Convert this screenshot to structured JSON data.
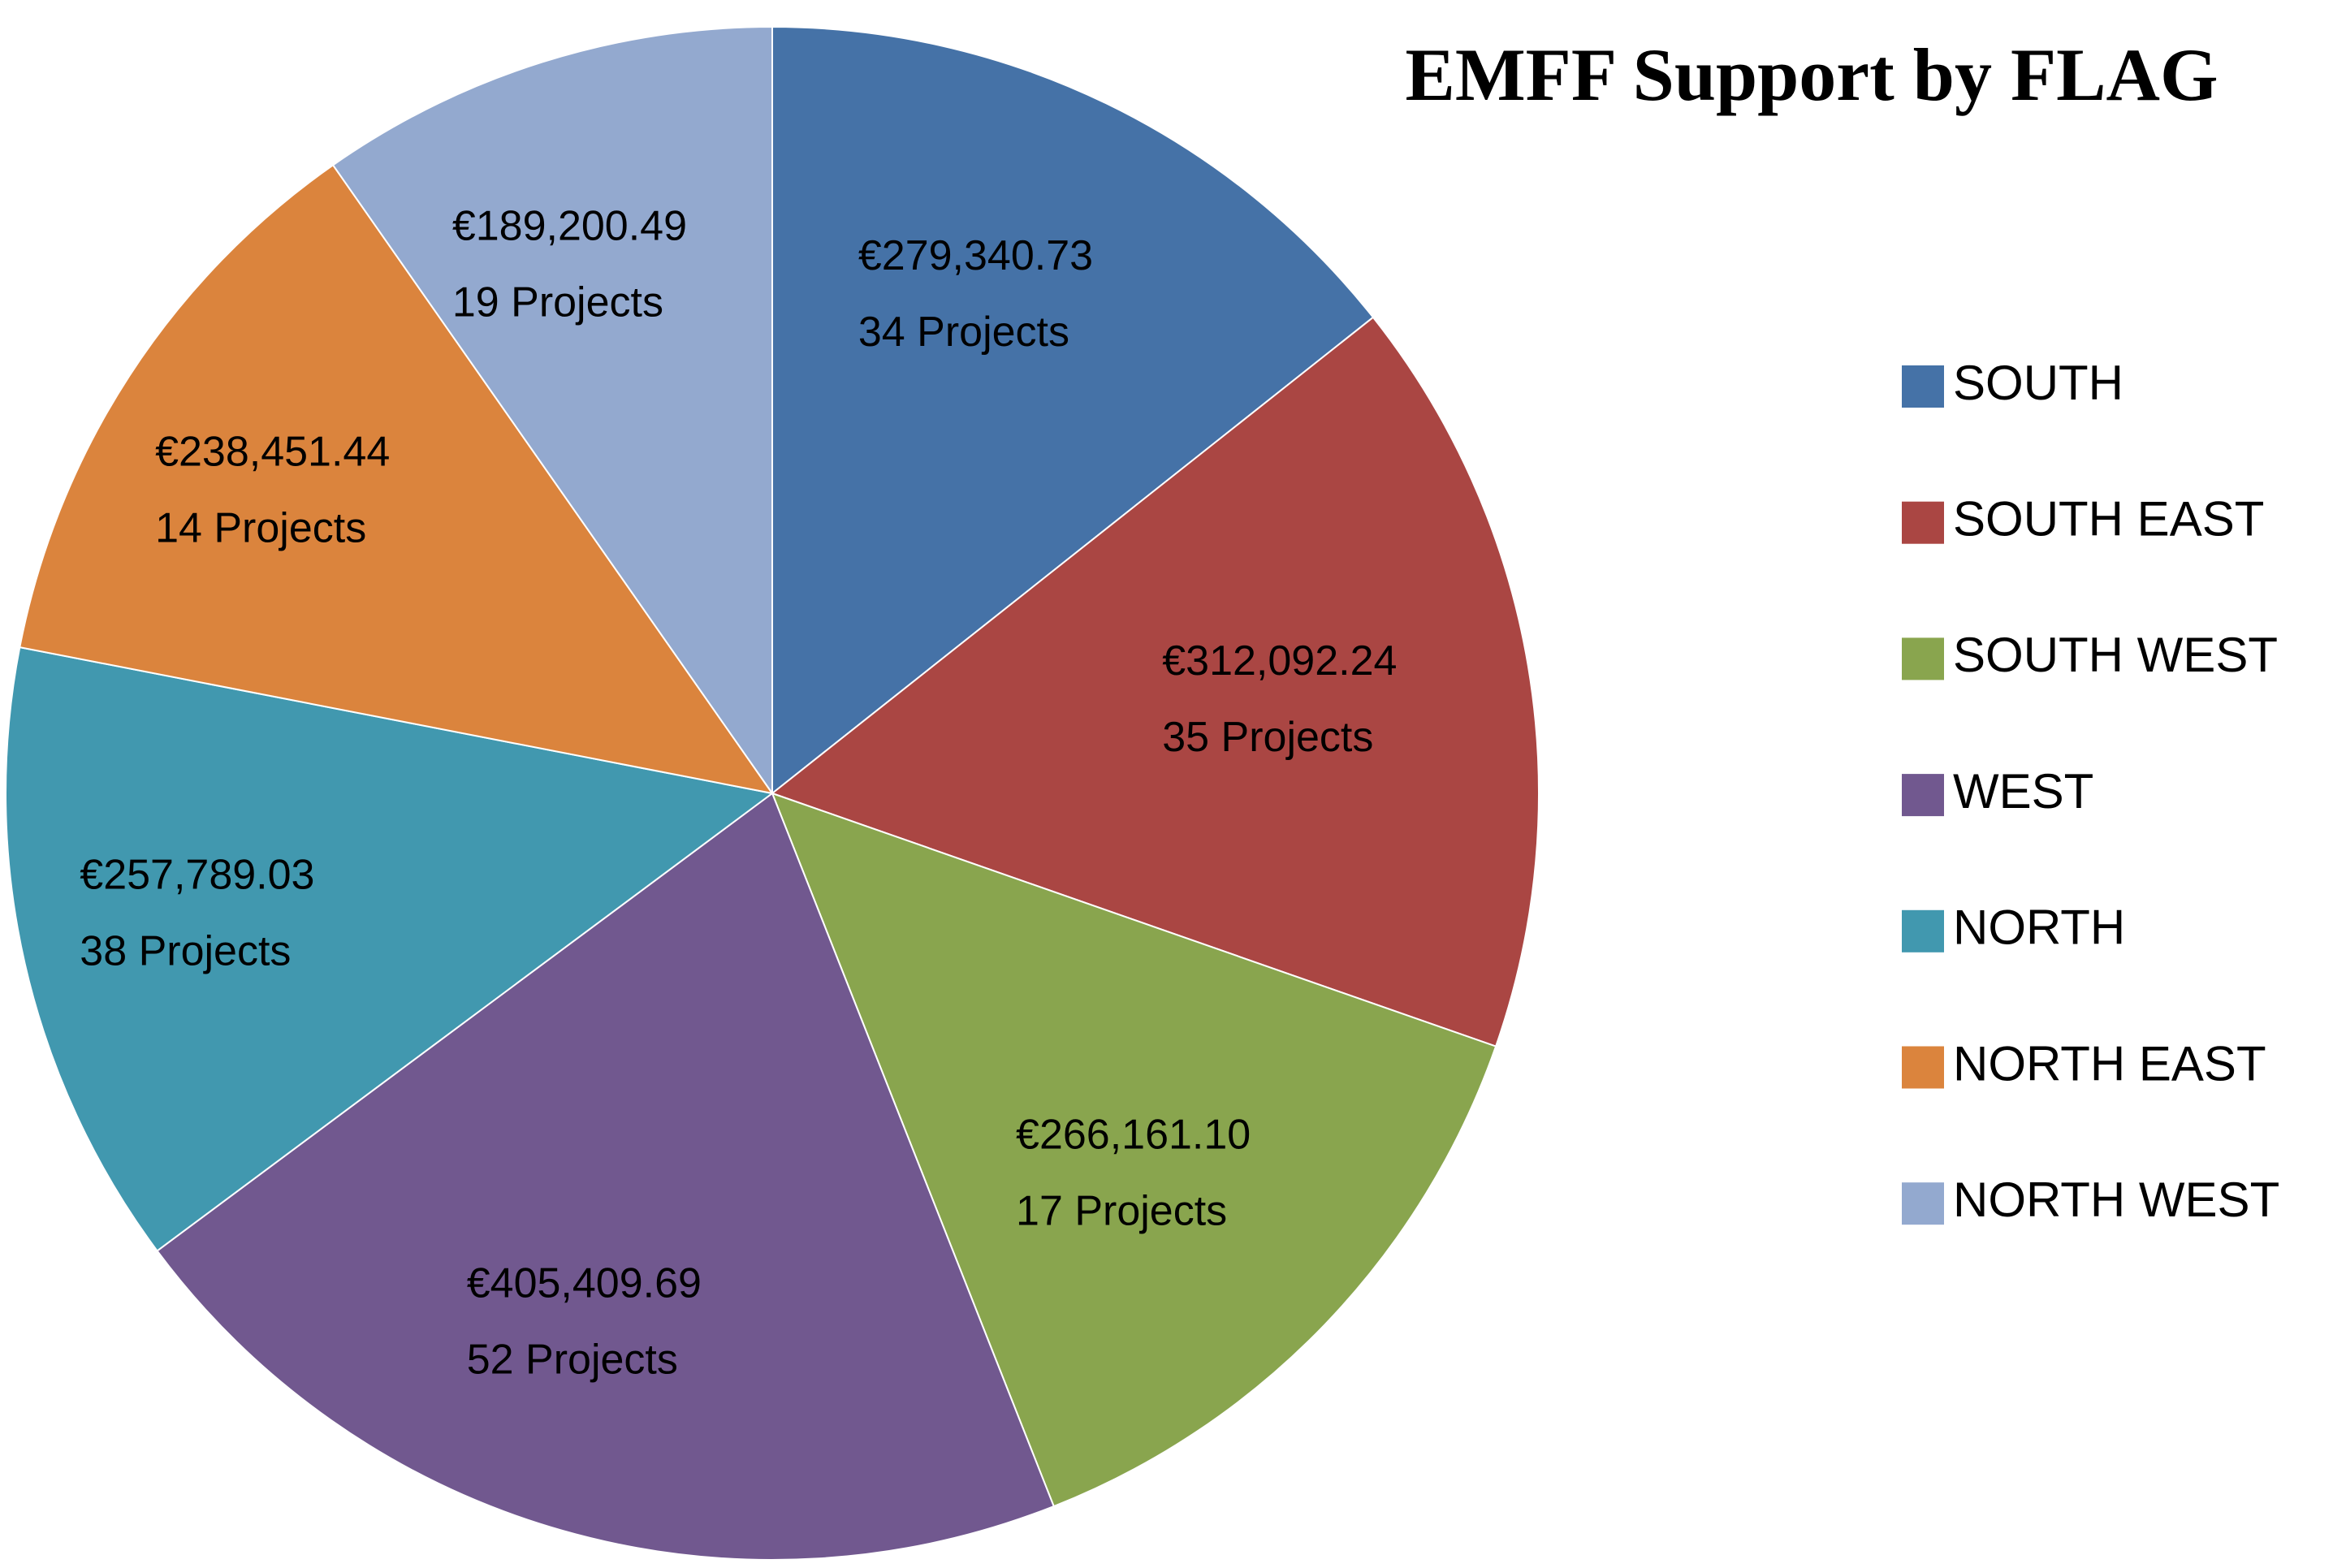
{
  "chart_data": {
    "type": "pie",
    "title": "EMFF Support by FLAG",
    "categories": [
      "SOUTH",
      "SOUTH EAST",
      "SOUTH WEST",
      "WEST",
      "NORTH",
      "NORTH EAST",
      "NORTH WEST"
    ],
    "values": [
      279340.73,
      312092.24,
      266161.1,
      405409.69,
      257789.03,
      238451.44,
      189200.49
    ],
    "value_labels": [
      "€279,340.73",
      "€312,092.24",
      "€266,161.10",
      "€405,409.69",
      "€257,789.03",
      "€238,451.44",
      "€189,200.49"
    ],
    "projects": [
      "34 Projects",
      "35 Projects",
      "17 Projects",
      "52 Projects",
      "38 Projects",
      "14 Projects",
      "19 Projects"
    ],
    "colors": [
      "#4572a7",
      "#aa4643",
      "#89a54e",
      "#71588f",
      "#4198af",
      "#db843d",
      "#93a9cf"
    ],
    "legend": "right"
  }
}
